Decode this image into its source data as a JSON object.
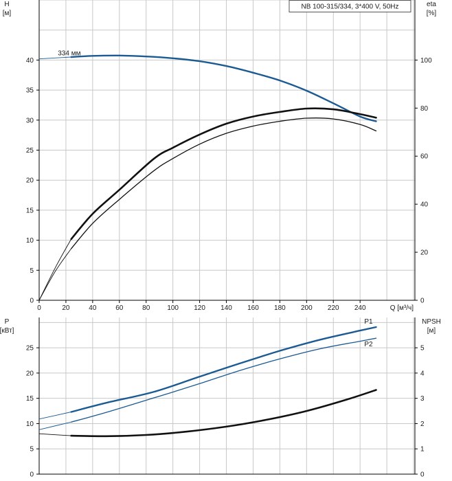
{
  "chart_data": [
    {
      "type": "line",
      "title": "NB 100-315/334, 3*400 V, 50Hz",
      "x_range": [
        0,
        281
      ],
      "x_ticks": [
        0,
        20,
        40,
        60,
        80,
        100,
        120,
        140,
        160,
        180,
        200,
        220,
        240
      ],
      "xlabel": "Q [м³/ч]",
      "left_axis": {
        "label_top": "H",
        "label_unit": "[м]",
        "range": [
          0,
          50
        ],
        "ticks": [
          0,
          5,
          10,
          15,
          20,
          25,
          30,
          35,
          40
        ]
      },
      "right_axis": {
        "label_top": "eta",
        "label_unit": "[%]",
        "range": [
          0,
          125
        ],
        "ticks": [
          0,
          20,
          40,
          60,
          80,
          100
        ]
      },
      "grid": true,
      "series": [
        {
          "name": "334 мм",
          "axis": "left",
          "color": "#1b5a92",
          "x": [
            0,
            12,
            24,
            40,
            60,
            80,
            100,
            120,
            140,
            160,
            180,
            200,
            220,
            240,
            252
          ],
          "y": [
            40.2,
            40.35,
            40.5,
            40.7,
            40.75,
            40.6,
            40.3,
            39.8,
            39.0,
            37.9,
            36.6,
            34.9,
            32.8,
            30.6,
            29.8
          ]
        },
        {
          "axis": "right",
          "color": "#111111",
          "x": [
            0,
            12,
            24,
            40,
            60,
            86,
            100,
            120,
            140,
            160,
            180,
            200,
            220,
            240,
            252
          ],
          "y": [
            0,
            12,
            21.5,
            32,
            42,
            54,
            59,
            65,
            69.5,
            72.5,
            74.5,
            75.8,
            75.5,
            73.2,
            70.5
          ]
        },
        {
          "axis": "right",
          "color": "#111111",
          "x": [
            0,
            12,
            24,
            40,
            60,
            86,
            100,
            120,
            140,
            160,
            180,
            200,
            220,
            240,
            252
          ],
          "y": [
            0,
            13.5,
            25.5,
            36,
            46,
            59,
            63.5,
            69,
            73.5,
            76.5,
            78.4,
            79.8,
            79.5,
            77.5,
            76
          ]
        }
      ]
    },
    {
      "type": "line",
      "x_range": [
        0,
        281
      ],
      "left_axis": {
        "label_top": "P",
        "label_unit": "[кВт]",
        "range": [
          0,
          31
        ],
        "ticks": [
          0,
          5,
          10,
          15,
          20,
          25
        ]
      },
      "right_axis": {
        "label_top": "NPSH",
        "label_unit": "[м]",
        "range": [
          0,
          6.2
        ],
        "ticks": [
          0,
          1,
          2,
          3,
          4,
          5
        ]
      },
      "grid": true,
      "series": [
        {
          "name": "P1",
          "axis": "left",
          "color": "#1b5a92",
          "x": [
            0,
            24,
            50,
            86,
            120,
            150,
            180,
            210,
            240,
            252
          ],
          "y": [
            10.9,
            12.3,
            14.1,
            16.3,
            19.3,
            21.9,
            24.4,
            26.6,
            28.4,
            29.1
          ]
        },
        {
          "name": "P2",
          "axis": "left",
          "color": "#1b5a92",
          "x": [
            0,
            24,
            50,
            86,
            120,
            150,
            180,
            210,
            240,
            252
          ],
          "y": [
            8.8,
            10.3,
            12.2,
            15.1,
            17.9,
            20.5,
            22.8,
            24.8,
            26.3,
            26.9
          ]
        },
        {
          "axis": "right",
          "color": "#111111",
          "x": [
            0,
            24,
            50,
            80,
            110,
            140,
            170,
            200,
            230,
            252
          ],
          "y": [
            1.6,
            1.52,
            1.5,
            1.55,
            1.68,
            1.88,
            2.15,
            2.5,
            2.95,
            3.33
          ]
        }
      ]
    }
  ]
}
